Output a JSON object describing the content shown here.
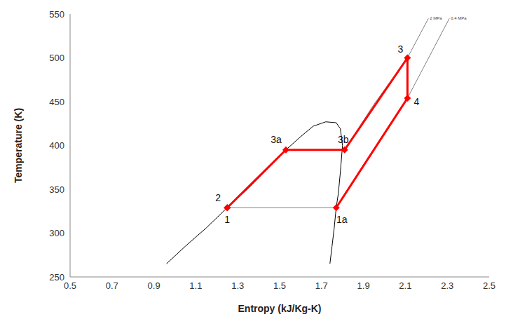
{
  "chart_data": {
    "type": "line",
    "x_label": "Entropy (kJ/Kg-K)",
    "y_label": "Temperature (K)",
    "xlim": [
      0.5,
      2.5
    ],
    "xticks": [
      0.5,
      0.7,
      0.9,
      1.1,
      1.3,
      1.5,
      1.7,
      1.9,
      2.1,
      2.3,
      2.5
    ],
    "ylim": [
      250,
      550
    ],
    "yticks": [
      250,
      300,
      350,
      400,
      450,
      500,
      550
    ],
    "grid": false,
    "series": [
      {
        "color": "#000000",
        "x": [
          0.96,
          1.05,
          1.15,
          1.25,
          1.35,
          1.45,
          1.53,
          1.6,
          1.66,
          1.72,
          1.77,
          1.79,
          1.8,
          1.79,
          1.78,
          1.77,
          1.76,
          1.75,
          1.74
        ],
        "values": [
          265,
          285,
          306,
          329,
          351,
          375,
          395,
          410,
          422,
          427,
          426,
          419,
          400,
          370,
          345,
          329,
          305,
          285,
          265
        ]
      },
      {
        "color": "#808080",
        "x": [
          1.77,
          1.25
        ],
        "values": [
          329,
          329
        ]
      },
      {
        "name": "2 MPa",
        "color": "#808080",
        "x": [
          1.81,
          1.95,
          2.11,
          2.21
        ],
        "values": [
          395,
          447,
          500,
          545
        ]
      },
      {
        "name": "0.4 MPa",
        "color": "#808080",
        "x": [
          2.11,
          2.2,
          2.31
        ],
        "values": [
          454,
          495,
          545
        ]
      },
      {
        "color": "#ff0000",
        "marker": "diamond",
        "x": [
          1.25,
          1.25,
          1.53,
          1.81,
          2.11,
          2.11,
          1.77
        ],
        "values": [
          329,
          329,
          395,
          395,
          500,
          454,
          329
        ],
        "point_labels": [
          "1",
          "2",
          "3a",
          "3b",
          "3",
          "4",
          "1a"
        ]
      }
    ]
  }
}
